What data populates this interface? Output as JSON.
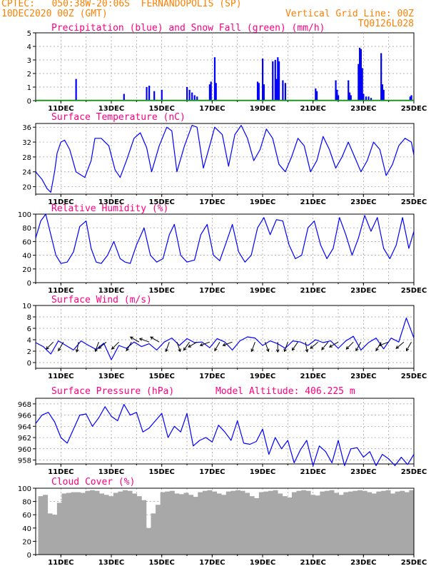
{
  "header": {
    "line1_left": "CPTEC:   050:38W-20:06S  FERNANDOPOLIS (SP)",
    "line2_left": "10DEC2020 00Z (GMT)",
    "line2_right": "Vertical Grid Line: 00Z",
    "line3_right": "TQ0126L028"
  },
  "colors": {
    "header": "#ff8000",
    "title": "#ff0080",
    "precip": "#0000ff",
    "snow": "#00a000",
    "line": "#0000ff",
    "cloud": "#a8a8a8",
    "grid": "#999999"
  },
  "chart_data": [
    {
      "type": "bar",
      "title": "Precipitation (blue) and Snow Fall (green) (mm/h)",
      "x_categories": [
        "11DEC",
        "13DEC",
        "15DEC",
        "17DEC",
        "19DEC",
        "21DEC",
        "23DEC",
        "25DEC"
      ],
      "ylim": [
        0,
        5
      ],
      "yticks": [
        0,
        1,
        2,
        3,
        4,
        5
      ],
      "series": [
        {
          "name": "Precipitation",
          "values": [
            [
              11.6,
              1.6
            ],
            [
              13.5,
              0.5
            ],
            [
              14.4,
              1.0
            ],
            [
              14.5,
              1.1
            ],
            [
              14.7,
              0.7
            ],
            [
              15.0,
              0.8
            ],
            [
              16.0,
              1.0
            ],
            [
              16.1,
              0.8
            ],
            [
              16.2,
              0.6
            ],
            [
              16.3,
              0.4
            ],
            [
              16.4,
              0.3
            ],
            [
              16.9,
              1.2
            ],
            [
              16.95,
              1.4
            ],
            [
              17.1,
              3.2
            ],
            [
              17.15,
              1.3
            ],
            [
              18.8,
              1.4
            ],
            [
              18.85,
              1.3
            ],
            [
              19.0,
              3.1
            ],
            [
              19.05,
              1.2
            ],
            [
              19.4,
              2.9
            ],
            [
              19.5,
              3.0
            ],
            [
              19.55,
              1.6
            ],
            [
              19.6,
              3.2
            ],
            [
              19.65,
              2.9
            ],
            [
              19.8,
              1.5
            ],
            [
              19.9,
              1.3
            ],
            [
              21.1,
              0.9
            ],
            [
              21.15,
              0.7
            ],
            [
              21.9,
              1.5
            ],
            [
              21.95,
              0.8
            ],
            [
              22.0,
              0.4
            ],
            [
              22.4,
              1.5
            ],
            [
              22.45,
              0.6
            ],
            [
              22.5,
              0.4
            ],
            [
              22.8,
              2.7
            ],
            [
              22.85,
              3.9
            ],
            [
              22.9,
              3.8
            ],
            [
              22.95,
              2.4
            ],
            [
              23.0,
              0.5
            ],
            [
              23.1,
              0.3
            ],
            [
              23.2,
              0.3
            ],
            [
              23.3,
              0.2
            ],
            [
              23.7,
              3.5
            ],
            [
              23.75,
              1.2
            ],
            [
              23.8,
              0.8
            ],
            [
              24.85,
              0.3
            ],
            [
              24.9,
              0.4
            ]
          ]
        },
        {
          "name": "Snow Fall",
          "values": []
        }
      ]
    },
    {
      "type": "line",
      "title": "Surface Temperature (nC)",
      "ylim": [
        18,
        37
      ],
      "yticks": [
        20,
        24,
        28,
        32,
        36
      ],
      "x": [
        10.0,
        10.25,
        10.45,
        10.6,
        10.75,
        10.85,
        11.0,
        11.15,
        11.35,
        11.6,
        11.95,
        12.2,
        12.35,
        12.6,
        12.9,
        13.15,
        13.35,
        13.6,
        13.9,
        14.15,
        14.4,
        14.6,
        14.9,
        15.2,
        15.4,
        15.6,
        15.9,
        16.2,
        16.4,
        16.65,
        16.9,
        17.1,
        17.4,
        17.65,
        17.9,
        18.15,
        18.4,
        18.65,
        18.9,
        19.15,
        19.4,
        19.65,
        19.9,
        20.15,
        20.4,
        20.65,
        20.9,
        21.15,
        21.4,
        21.65,
        21.9,
        22.15,
        22.4,
        22.65,
        22.9,
        23.15,
        23.4,
        23.65,
        23.9,
        24.15,
        24.4,
        24.65,
        24.9,
        25.0
      ],
      "y": [
        24,
        22,
        19.5,
        18.5,
        24,
        29,
        32,
        32.5,
        30,
        24,
        22.5,
        27,
        33,
        33,
        31,
        24.5,
        22.5,
        27,
        33,
        34.5,
        30.5,
        24,
        31,
        36,
        35,
        24,
        31,
        36.5,
        36,
        25,
        31,
        36,
        34,
        25.5,
        34,
        36.5,
        33,
        27,
        30,
        35.5,
        33,
        26,
        24,
        28,
        33,
        31,
        24,
        27,
        33.5,
        30,
        25,
        28,
        32,
        28,
        24,
        27,
        32,
        30,
        23,
        26,
        31,
        33,
        32,
        28.5
      ]
    },
    {
      "type": "line",
      "title": "Relative Humidity (%)",
      "ylim": [
        0,
        100
      ],
      "yticks": [
        0,
        20,
        40,
        60,
        80,
        100
      ],
      "x": [
        10.0,
        10.2,
        10.4,
        10.6,
        10.8,
        11.0,
        11.25,
        11.5,
        11.75,
        12.0,
        12.2,
        12.4,
        12.6,
        12.85,
        13.1,
        13.35,
        13.55,
        13.75,
        14.0,
        14.3,
        14.55,
        14.8,
        15.05,
        15.3,
        15.5,
        15.75,
        16.0,
        16.3,
        16.55,
        16.8,
        17.05,
        17.3,
        17.55,
        17.8,
        18.05,
        18.3,
        18.55,
        18.8,
        19.05,
        19.3,
        19.55,
        19.8,
        20.05,
        20.3,
        20.55,
        20.8,
        21.05,
        21.3,
        21.55,
        21.8,
        22.05,
        22.3,
        22.55,
        22.8,
        23.05,
        23.3,
        23.55,
        23.8,
        24.05,
        24.3,
        24.55,
        24.8,
        25.0
      ],
      "y": [
        65,
        90,
        100,
        70,
        40,
        28,
        30,
        45,
        82,
        90,
        50,
        30,
        28,
        40,
        60,
        35,
        30,
        28,
        55,
        80,
        40,
        30,
        35,
        70,
        85,
        40,
        30,
        33,
        70,
        85,
        40,
        32,
        58,
        85,
        45,
        30,
        40,
        80,
        95,
        70,
        92,
        90,
        55,
        35,
        40,
        80,
        90,
        55,
        35,
        50,
        95,
        70,
        40,
        65,
        98,
        75,
        95,
        50,
        35,
        55,
        95,
        50,
        75
      ]
    },
    {
      "type": "line",
      "title": "Surface Wind (m/s)",
      "ylim": [
        -1,
        10
      ],
      "yticks": [
        0,
        2,
        4,
        6,
        8,
        10
      ],
      "x": [
        10.0,
        10.3,
        10.6,
        10.9,
        11.2,
        11.5,
        11.8,
        12.1,
        12.4,
        12.7,
        13.0,
        13.3,
        13.6,
        13.9,
        14.2,
        14.5,
        14.8,
        15.1,
        15.4,
        15.7,
        16.0,
        16.3,
        16.6,
        16.9,
        17.2,
        17.5,
        17.8,
        18.1,
        18.4,
        18.7,
        19.0,
        19.3,
        19.6,
        19.9,
        20.2,
        20.5,
        20.8,
        21.1,
        21.4,
        21.7,
        22.0,
        22.3,
        22.6,
        22.9,
        23.2,
        23.5,
        23.8,
        24.1,
        24.4,
        24.7,
        25.0
      ],
      "y": [
        3.5,
        2.8,
        1.5,
        3.8,
        3.0,
        2.2,
        3.8,
        3.0,
        2.3,
        3.4,
        0.5,
        3.0,
        2.5,
        3.6,
        2.8,
        3.3,
        2.2,
        3.6,
        4.3,
        3.0,
        4.2,
        3.5,
        3.6,
        2.6,
        4.2,
        3.6,
        2.2,
        3.8,
        4.5,
        4.3,
        3.0,
        3.8,
        3.3,
        2.5,
        3.8,
        3.6,
        3.0,
        4.0,
        3.5,
        3.8,
        2.5,
        3.8,
        4.6,
        2.2,
        3.5,
        4.3,
        2.4,
        4.3,
        3.6,
        7.8,
        4.3
      ],
      "arrows": [
        {
          "x": 10.7,
          "dir": 225
        },
        {
          "x": 11.1,
          "dir": 210
        },
        {
          "x": 11.7,
          "dir": 190
        },
        {
          "x": 12.5,
          "dir": 200
        },
        {
          "x": 12.8,
          "dir": 230
        },
        {
          "x": 13.3,
          "dir": 225
        },
        {
          "x": 13.8,
          "dir": 210
        },
        {
          "x": 14.1,
          "dir": 300
        },
        {
          "x": 14.5,
          "dir": 290
        },
        {
          "x": 14.9,
          "dir": 300
        },
        {
          "x": 15.3,
          "dir": 200
        },
        {
          "x": 15.6,
          "dir": 160
        },
        {
          "x": 16.1,
          "dir": 215
        },
        {
          "x": 16.4,
          "dir": 240
        },
        {
          "x": 16.9,
          "dir": 250
        },
        {
          "x": 17.3,
          "dir": 210
        },
        {
          "x": 17.8,
          "dir": 250
        },
        {
          "x": 18.7,
          "dir": 200
        },
        {
          "x": 19.1,
          "dir": 160
        },
        {
          "x": 19.6,
          "dir": 180
        },
        {
          "x": 20.0,
          "dir": 200
        },
        {
          "x": 20.4,
          "dir": 215
        },
        {
          "x": 20.7,
          "dir": 170
        },
        {
          "x": 21.2,
          "dir": 230
        },
        {
          "x": 21.6,
          "dir": 220
        },
        {
          "x": 22.0,
          "dir": 240
        },
        {
          "x": 22.6,
          "dir": 225
        },
        {
          "x": 22.9,
          "dir": 210
        },
        {
          "x": 23.7,
          "dir": 210
        },
        {
          "x": 24.0,
          "dir": 250
        },
        {
          "x": 24.6,
          "dir": 230
        },
        {
          "x": 24.9,
          "dir": 210
        }
      ]
    },
    {
      "type": "line",
      "title": "Surface Pressure (hPa)",
      "annotation": "Model Altitude: 406.225 m",
      "ylim": [
        957.3,
        969
      ],
      "yticks": [
        958,
        960,
        962,
        964,
        966,
        968
      ],
      "x": [
        10.0,
        10.25,
        10.5,
        10.75,
        11.0,
        11.25,
        11.5,
        11.75,
        12.0,
        12.25,
        12.5,
        12.75,
        13.0,
        13.25,
        13.5,
        13.75,
        14.0,
        14.25,
        14.5,
        14.75,
        15.0,
        15.25,
        15.5,
        15.75,
        16.0,
        16.25,
        16.5,
        16.75,
        17.0,
        17.25,
        17.5,
        17.75,
        18.0,
        18.25,
        18.5,
        18.75,
        19.0,
        19.25,
        19.5,
        19.75,
        20.0,
        20.25,
        20.5,
        20.75,
        21.0,
        21.25,
        21.5,
        21.75,
        22.0,
        22.25,
        22.5,
        22.75,
        23.0,
        23.25,
        23.5,
        23.75,
        24.0,
        24.25,
        24.5,
        24.75,
        25.0
      ],
      "y": [
        964.5,
        966,
        966.5,
        964.8,
        962,
        961,
        963.5,
        966,
        966.2,
        964,
        965.5,
        967.5,
        965.8,
        965,
        967.9,
        966,
        966.5,
        963,
        963.7,
        965,
        966.3,
        962,
        964,
        963,
        966.3,
        960.5,
        961.5,
        962,
        961.2,
        964.2,
        963,
        961.5,
        965,
        961,
        960.8,
        961.3,
        963.5,
        959,
        962,
        960,
        961.5,
        957.5,
        959.8,
        961.5,
        957,
        960.5,
        959.5,
        957.5,
        961.5,
        957,
        960,
        960.2,
        958.5,
        959.5,
        957,
        959,
        958.2,
        957,
        958.5,
        957.2,
        959
      ]
    },
    {
      "type": "bar",
      "title": "Cloud Cover (%)",
      "ylim": [
        0,
        100
      ],
      "yticks": [
        0,
        20,
        40,
        60,
        80,
        100
      ],
      "x_start": 10.1,
      "x_end": 25.0,
      "values": [
        88,
        90,
        62,
        60,
        78,
        92,
        93,
        94,
        94,
        93,
        96,
        97,
        96,
        92,
        90,
        88,
        93,
        95,
        97,
        96,
        92,
        88,
        82,
        40,
        62,
        75,
        94,
        95,
        96,
        92,
        91,
        93,
        90,
        87,
        94,
        96,
        97,
        95,
        92,
        90,
        95,
        96,
        97,
        96,
        93,
        88,
        85,
        94,
        95,
        96,
        97,
        92,
        88,
        86,
        94,
        96,
        97,
        96,
        90,
        89,
        95,
        96,
        97,
        93,
        90,
        94,
        95,
        96,
        97,
        96,
        94,
        92,
        95,
        96,
        97,
        92,
        95,
        96,
        94,
        97
      ]
    }
  ],
  "x_ticks": [
    "11DEC",
    "13DEC",
    "15DEC",
    "17DEC",
    "19DEC",
    "21DEC",
    "23DEC",
    "25DEC"
  ]
}
